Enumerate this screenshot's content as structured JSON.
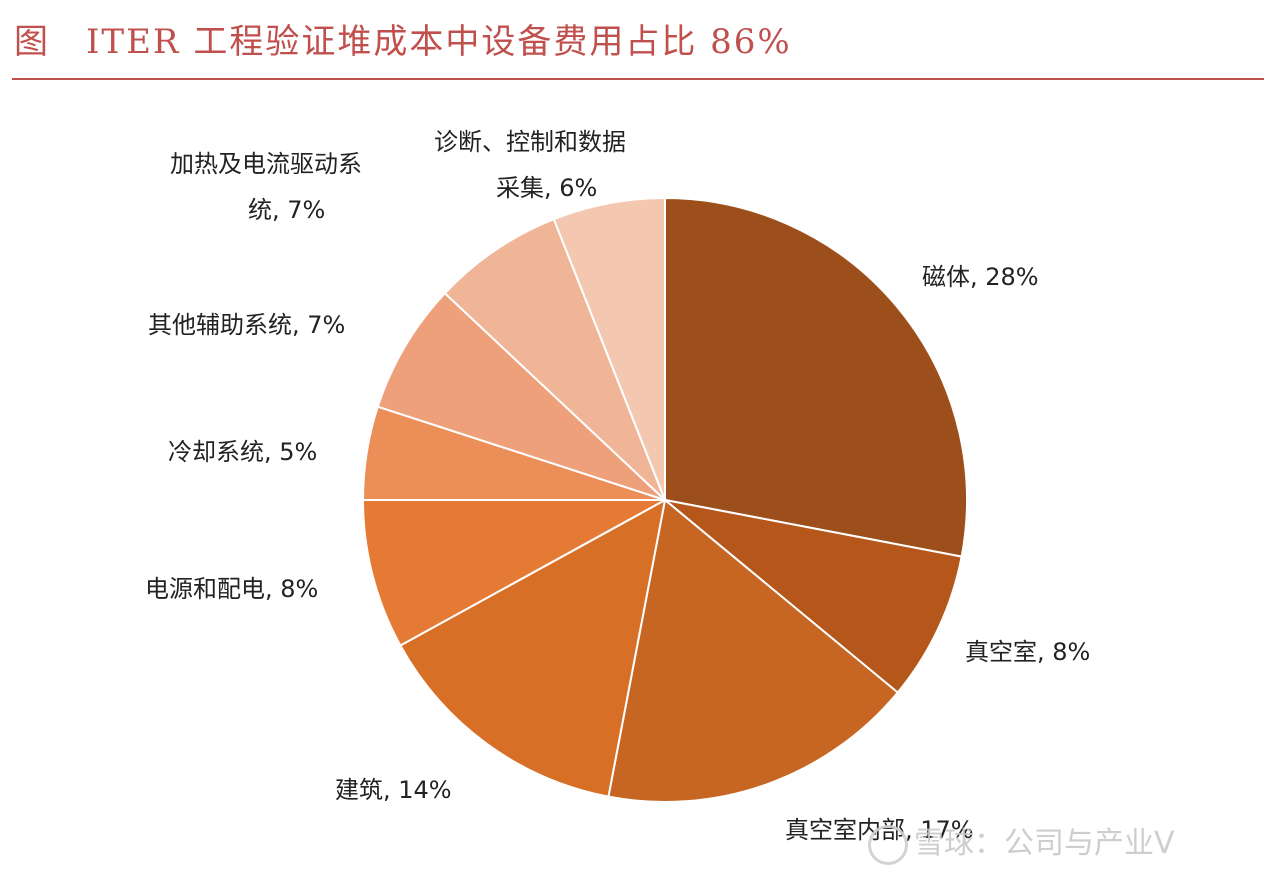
{
  "header": {
    "title": "图　ITER 工程验证堆成本中设备费用占比 86%"
  },
  "chart_data": {
    "type": "pie",
    "title": "图　ITER 工程验证堆成本中设备费用占比 86%",
    "start": "12 o'clock",
    "direction": "clockwise",
    "slices": [
      {
        "name": "磁体",
        "value": 28,
        "label": "磁体, 28%",
        "color": "#9c4f1a"
      },
      {
        "name": "真空室",
        "value": 8,
        "label": "真空室, 8%",
        "color": "#b5561a"
      },
      {
        "name": "真空室内部",
        "value": 17,
        "label": "真空室内部, 17%",
        "color": "#c66622"
      },
      {
        "name": "建筑",
        "value": 14,
        "label": "建筑, 14%",
        "color": "#d86f27"
      },
      {
        "name": "电源和配电",
        "value": 8,
        "label": "电源和配电, 8%",
        "color": "#e57a34"
      },
      {
        "name": "冷却系统",
        "value": 5,
        "label": "冷却系统, 5%",
        "color": "#eb8e58"
      },
      {
        "name": "其他辅助系统",
        "value": 7,
        "label": "其他辅助系统, 7%",
        "color": "#eda07a"
      },
      {
        "name": "加热及电流驱动系统",
        "value": 7,
        "label": [
          "加热及电流驱动系",
          "统, 7%"
        ],
        "color": "#f0b496"
      },
      {
        "name": "诊断、控制和数据采集",
        "value": 6,
        "label": [
          "诊断、控制和数据",
          "采集, 6%"
        ],
        "color": "#f4c7b1"
      }
    ],
    "legend": "none",
    "grid": false
  },
  "watermark": {
    "text": "雪球：公司与产业V"
  }
}
